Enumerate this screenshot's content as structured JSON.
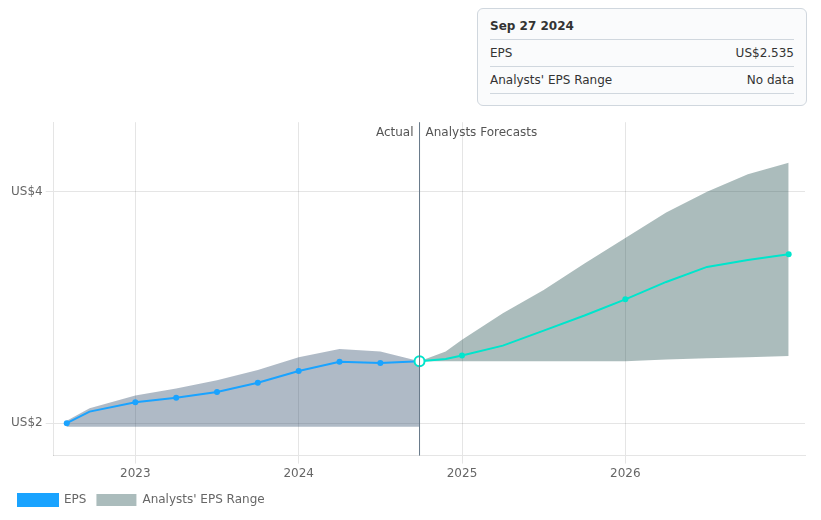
{
  "chart_data": {
    "type": "line",
    "xlim": [
      2022.5,
      2027.1
    ],
    "ylim": [
      1.72,
      4.6
    ],
    "xticks": [
      2023,
      2024,
      2025,
      2026
    ],
    "yticks": [
      {
        "value": 2.0,
        "label": "US$2"
      },
      {
        "value": 4.0,
        "label": "US$4"
      }
    ],
    "grid": true,
    "legend": "lower left",
    "series": [
      {
        "type": "band",
        "color": "#1a3a5c",
        "x": [
          2022.58,
          2022.72,
          2023.0,
          2023.25,
          2023.5,
          2023.75,
          2024.0,
          2024.25,
          2024.5,
          2024.74
        ],
        "upper": [
          2.02,
          2.13,
          2.24,
          2.3,
          2.37,
          2.46,
          2.57,
          2.64,
          2.62,
          2.535
        ],
        "lower": [
          1.97,
          1.97,
          1.97,
          1.97,
          1.97,
          1.97,
          1.97,
          1.97,
          1.97,
          1.97
        ]
      },
      {
        "type": "band",
        "name": "Analysts' EPS Range",
        "color": "#0d4040",
        "x": [
          2024.74,
          2024.9,
          2025.0,
          2025.25,
          2025.5,
          2025.75,
          2026.0,
          2026.25,
          2026.5,
          2026.75,
          2027.0
        ],
        "upper": [
          2.535,
          2.62,
          2.72,
          2.95,
          3.15,
          3.38,
          3.6,
          3.82,
          4.0,
          4.15,
          4.25
        ],
        "lower": [
          2.535,
          2.535,
          2.535,
          2.535,
          2.535,
          2.535,
          2.535,
          2.55,
          2.56,
          2.57,
          2.58
        ]
      },
      {
        "type": "line",
        "name": "EPS",
        "color": "#1aa3ff",
        "x": [
          2022.58,
          2022.72,
          2023.0,
          2023.25,
          2023.5,
          2023.75,
          2024.0,
          2024.25,
          2024.5,
          2024.74
        ],
        "values": [
          2.0,
          2.1,
          2.18,
          2.22,
          2.27,
          2.35,
          2.45,
          2.53,
          2.52,
          2.535
        ]
      },
      {
        "type": "line",
        "name": "EPS",
        "color": "#00e5cc",
        "x": [
          2024.74,
          2024.9,
          2025.0,
          2025.25,
          2025.5,
          2025.75,
          2026.0,
          2026.25,
          2026.5,
          2026.75,
          2027.0
        ],
        "values": [
          2.535,
          2.555,
          2.585,
          2.67,
          2.8,
          2.93,
          3.07,
          3.22,
          3.35,
          3.41,
          3.46
        ]
      },
      {
        "type": "scatter",
        "color": "#1aa3ff",
        "marker": "circle",
        "x": [
          2022.58,
          2023.0,
          2023.25,
          2023.5,
          2023.75,
          2024.0,
          2024.25,
          2024.5
        ],
        "values": [
          2.0,
          2.18,
          2.22,
          2.27,
          2.35,
          2.45,
          2.53,
          2.52
        ]
      },
      {
        "type": "scatter",
        "color": "#00e5cc",
        "marker": "circle",
        "x": [
          2025.0,
          2026.0,
          2027.0
        ],
        "values": [
          2.585,
          3.07,
          3.46
        ]
      },
      {
        "type": "scatter",
        "color": "#00e5cc",
        "marker": "open_circle",
        "x": [
          2024.74
        ],
        "values": [
          2.535
        ]
      }
    ],
    "annotations": [
      {
        "type": "vline",
        "x": 2024.74
      },
      {
        "text": "Actual",
        "x": 2024.74,
        "align": "right"
      },
      {
        "text": "Analysts Forecasts",
        "x": 2024.74,
        "align": "left"
      }
    ],
    "tooltip": {
      "title": "Sep 27 2024",
      "rows": [
        {
          "label": "EPS",
          "value": "US$2.535"
        },
        {
          "label": "Analysts' EPS Range",
          "value": "No data"
        }
      ]
    }
  }
}
